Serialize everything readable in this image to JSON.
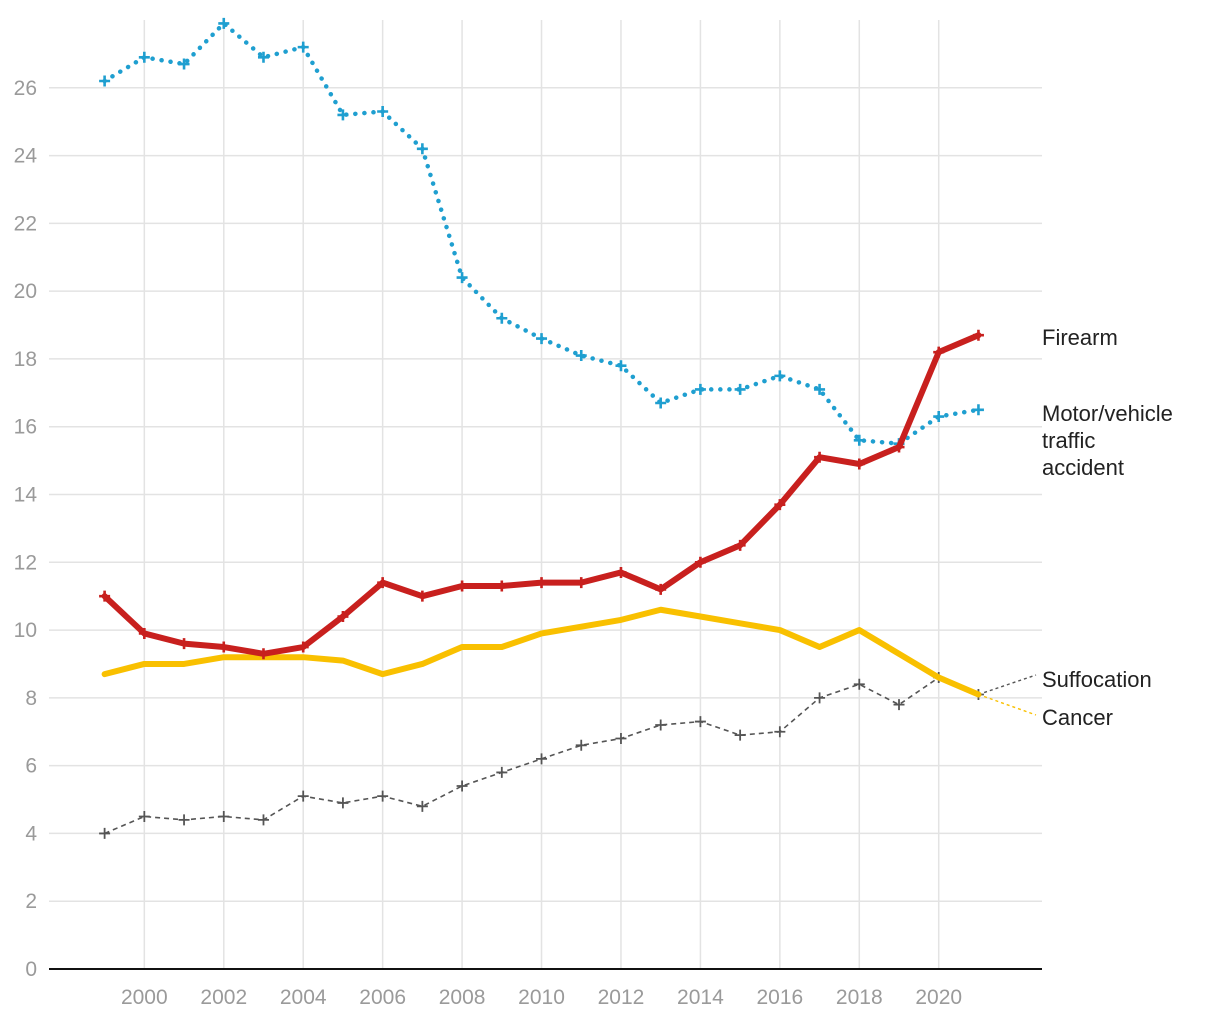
{
  "chart_data": {
    "type": "line",
    "title": "",
    "xlabel": "",
    "ylabel": "",
    "x": [
      1999,
      2000,
      2001,
      2002,
      2003,
      2004,
      2005,
      2006,
      2007,
      2008,
      2009,
      2010,
      2011,
      2012,
      2013,
      2014,
      2015,
      2016,
      2017,
      2018,
      2019,
      2020,
      2021
    ],
    "xlim": [
      1997.6,
      2022.6
    ],
    "ylim": [
      0,
      28
    ],
    "x_ticks": [
      "2000",
      "2002",
      "2004",
      "2006",
      "2008",
      "2010",
      "2012",
      "2014",
      "2016",
      "2018",
      "2020"
    ],
    "y_ticks": [
      "0",
      "2",
      "4",
      "6",
      "8",
      "10",
      "12",
      "14",
      "16",
      "18",
      "20",
      "22",
      "24",
      "26"
    ],
    "grid": true,
    "series": [
      {
        "name": "Motor/vehicle traffic accident",
        "label_lines": [
          "Motor/vehicle",
          "traffic",
          "accident"
        ],
        "color": "#1f9fd0",
        "style": "dotted",
        "values": [
          26.2,
          26.9,
          26.7,
          27.9,
          26.9,
          27.2,
          25.2,
          25.3,
          24.2,
          20.4,
          19.2,
          18.6,
          18.1,
          17.8,
          16.7,
          17.1,
          17.1,
          17.5,
          17.1,
          15.6,
          15.5,
          16.3,
          16.5
        ]
      },
      {
        "name": "Suffocation",
        "label_lines": [
          "Suffocation"
        ],
        "color": "#555555",
        "style": "dashed",
        "values": [
          4.0,
          4.5,
          4.4,
          4.5,
          4.4,
          5.1,
          4.9,
          5.1,
          4.8,
          5.4,
          5.8,
          6.2,
          6.6,
          6.8,
          7.2,
          7.3,
          6.9,
          7.0,
          8.0,
          8.4,
          7.8,
          8.6,
          8.1
        ]
      },
      {
        "name": "Cancer",
        "label_lines": [
          "Cancer"
        ],
        "color": "#f9c000",
        "style": "solid",
        "values": [
          8.7,
          9.0,
          9.0,
          9.2,
          9.2,
          9.2,
          9.1,
          8.7,
          9.0,
          9.5,
          9.5,
          9.9,
          10.1,
          10.3,
          10.6,
          10.4,
          10.2,
          10.0,
          9.5,
          10.0,
          9.3,
          8.6,
          8.1
        ]
      },
      {
        "name": "Firearm",
        "label_lines": [
          "Firearm"
        ],
        "color": "#c8201e",
        "style": "solid",
        "values": [
          11.0,
          9.9,
          9.6,
          9.5,
          9.3,
          9.5,
          10.4,
          11.4,
          11.0,
          11.3,
          11.3,
          11.4,
          11.4,
          11.7,
          11.2,
          12.0,
          12.5,
          13.7,
          15.1,
          14.9,
          15.4,
          18.2,
          18.7
        ]
      }
    ]
  }
}
